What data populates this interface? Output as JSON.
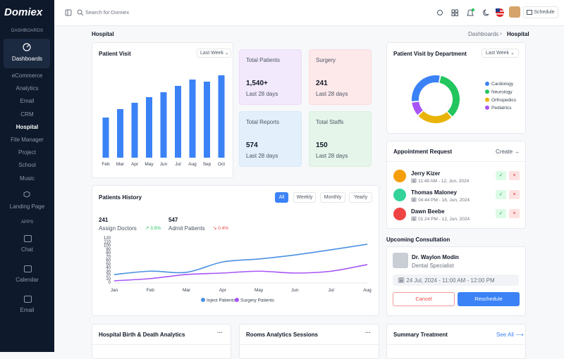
{
  "sidebar": {
    "logo": "Domiex",
    "section_1": "DASHBOARDS",
    "dashboards": "Dashboards",
    "menu": [
      "eCommerce",
      "Analytics",
      "Email",
      "CRM",
      "Hospital",
      "File Manager",
      "Project",
      "School",
      "Music"
    ],
    "landing": "Landing Page",
    "section_2": "APPS",
    "apps": [
      "Chat",
      "Calendar",
      "Email"
    ]
  },
  "topbar": {
    "search": "Search for Domiex",
    "schedule": "Schedule"
  },
  "breadcrumb": {
    "page": "Hospital",
    "trail": [
      "Dashboards",
      "Hospital"
    ]
  },
  "patient_visit": {
    "title": "Patient Visit",
    "filter": "Last Week",
    "chart": {
      "type": "bar",
      "categories": [
        "Feb",
        "Mar",
        "Apr",
        "May",
        "Jun",
        "Jul",
        "Aug",
        "Sep",
        "Oct"
      ],
      "values": [
        57,
        69,
        78,
        86,
        93,
        102,
        111,
        108,
        117
      ],
      "color": "#3b82f6"
    }
  },
  "stats": [
    {
      "label": "Total Patients",
      "value": "1,540+",
      "period": "Last 28 days"
    },
    {
      "label": "Surgery",
      "value": 241,
      "period": "Last 28 days"
    },
    {
      "label": "Total Reports",
      "value": 574,
      "period": "Last 28 days"
    },
    {
      "label": "Total Staffs",
      "value": 150,
      "period": "Last 28 days"
    }
  ],
  "department": {
    "title": "Patient Visit by Department",
    "filter": "Last Week",
    "chart": {
      "type": "donut",
      "series": [
        {
          "name": "Cardiology",
          "color": "#3b82f6",
          "values": [
            30
          ]
        },
        {
          "name": "Neurology",
          "color": "#22c55e",
          "values": [
            35
          ]
        },
        {
          "name": "Orthopedics",
          "color": "#eab308",
          "values": [
            25
          ]
        },
        {
          "name": "Pediatrics",
          "color": "#a855f7",
          "values": [
            10
          ]
        }
      ]
    }
  },
  "patients_history": {
    "title": "Patients History",
    "tabs": [
      "All",
      "Weekly",
      "Monthly",
      "Yearly"
    ],
    "kpis": [
      {
        "value": 241,
        "label": "Assign Doctors",
        "delta": "3.5%"
      },
      {
        "value": 547,
        "label": "Admit Patients",
        "delta": "0.4%"
      }
    ],
    "chart": {
      "type": "line",
      "categories": [
        "Jan",
        "Feb",
        "Mar",
        "Apr",
        "May",
        "Jun",
        "Jul",
        "Aug"
      ],
      "ylim": [
        0,
        120
      ],
      "yticks": [
        0,
        10,
        20,
        30,
        40,
        50,
        60,
        70,
        80,
        90,
        100,
        110,
        120
      ],
      "series": [
        {
          "name": "Inject Patients",
          "color": "#4a90e2",
          "values": [
            21,
            30,
            27,
            55,
            63,
            74,
            88,
            103
          ]
        },
        {
          "name": "Surgery Patients",
          "color": "#a855f7",
          "values": [
            4,
            10,
            21,
            25,
            30,
            25,
            30,
            48
          ]
        }
      ]
    }
  },
  "appointments": {
    "title": "Appointment Request",
    "action": "Create",
    "items": [
      {
        "name": "Jerry Kizer",
        "time": "11:49 AM - 12, Jun, 2024"
      },
      {
        "name": "Thomas Maloney",
        "time": "04:44 PM - 18, Jun, 2024"
      },
      {
        "name": "Dawn Beebe",
        "time": "01:24 PM - 12, Jun, 2024"
      }
    ]
  },
  "consultation": {
    "title": "Upcoming Consultation",
    "doctor": "Dr. Waylon Modin",
    "role": "Dental Specialist",
    "when": "24 Jul, 2024 - 11:00 AM - 12:00 PM",
    "cancel": "Cancel",
    "reschedule": "Reschedule"
  },
  "bottom": {
    "cards": [
      "Hospital Birth & Death Analytics",
      "Rooms Analytics Sessions",
      "Summary Treatment"
    ],
    "see_all": "See All"
  }
}
